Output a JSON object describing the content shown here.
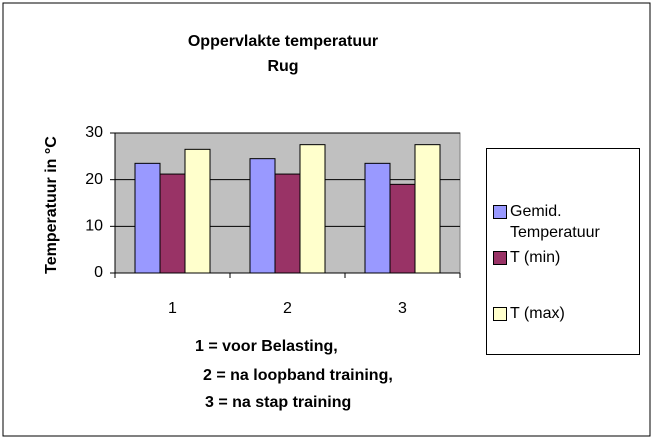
{
  "chart_data": {
    "type": "bar",
    "title": [
      "Oppervlakte temperatuur",
      "Rug"
    ],
    "y_label": "Temperatuur in °C",
    "categories": [
      "1",
      "2",
      "3"
    ],
    "series": [
      {
        "name": "Gemid. Temperatuur",
        "color": "#9999ff",
        "values": [
          23.5,
          24.5,
          23.5
        ]
      },
      {
        "name": "T (min)",
        "color": "#993366",
        "values": [
          21.2,
          21.2,
          19
        ]
      },
      {
        "name": "T (max)",
        "color": "#ffffcc",
        "values": [
          26.5,
          27.5,
          27.5
        ]
      }
    ],
    "ylim": [
      0,
      30
    ],
    "yticks": [
      0,
      10,
      20,
      30
    ],
    "grid": true,
    "legend": "right",
    "annotations": [
      "1 = voor Belasting,",
      "2 = na loopband training,",
      "3 = na stap training"
    ]
  }
}
